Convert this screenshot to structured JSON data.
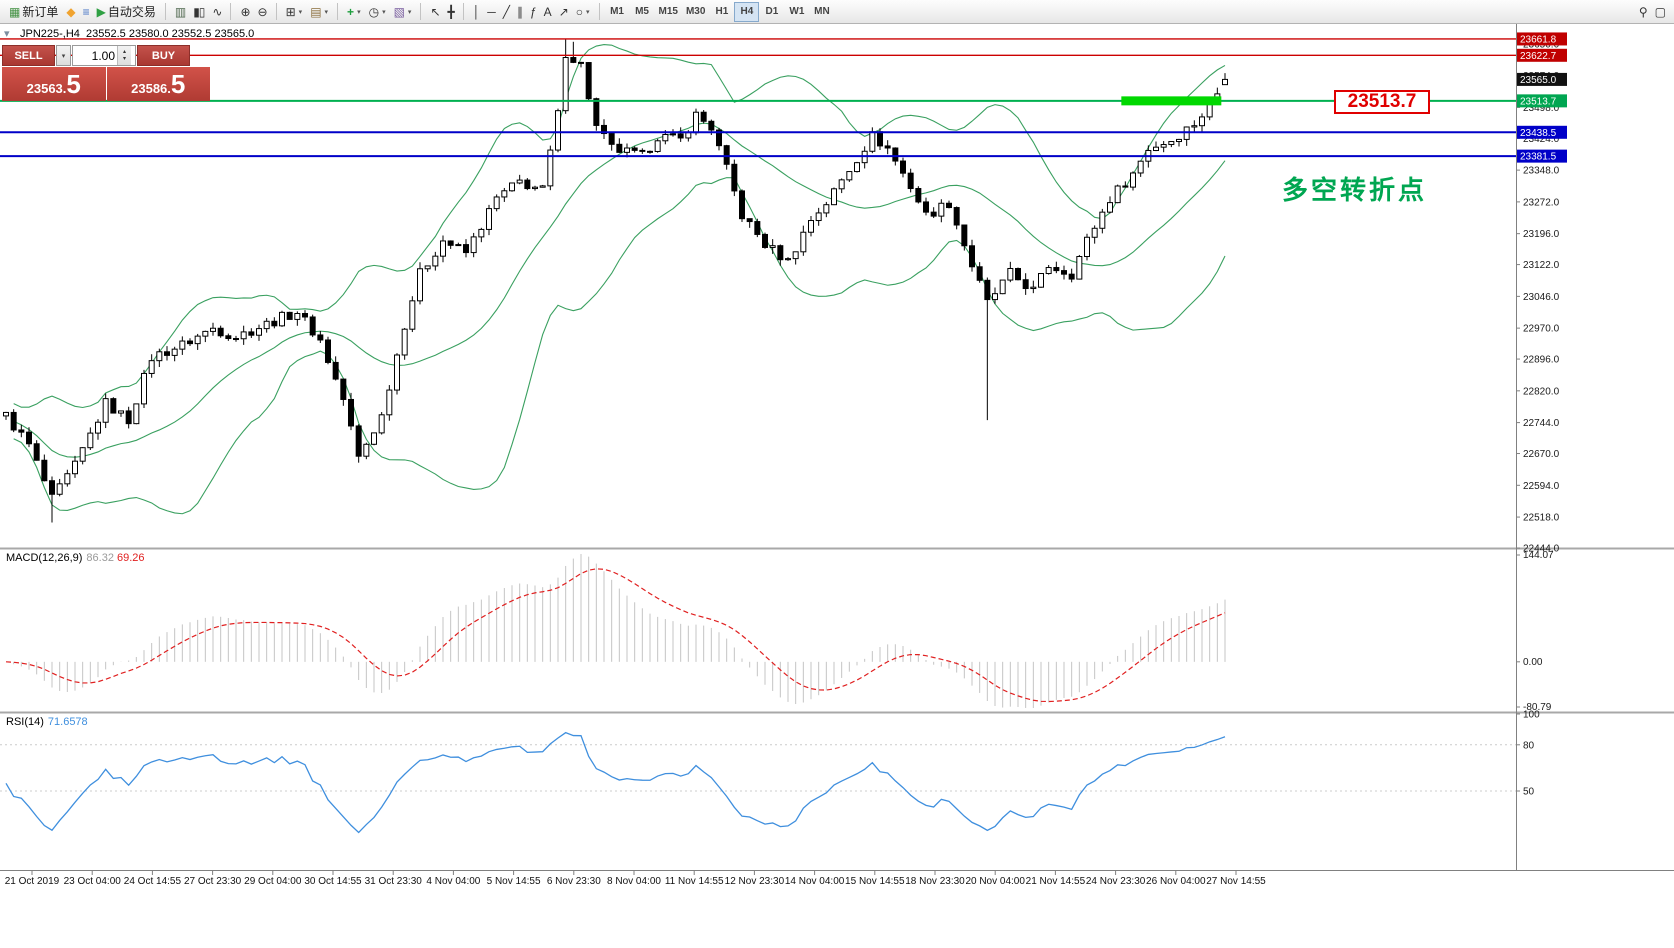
{
  "colors": {
    "background": "#ffffff",
    "candle_up": "#ffffff",
    "candle_down": "#000000",
    "candle_outline": "#000000",
    "bollinger": "#3aa060",
    "macd_histogram": "#c4c4c4",
    "macd_signal": "#e02020",
    "rsi": "#3f8fde",
    "axis_text": "#1a1a1a",
    "separator": "#a8a8a8",
    "scale_line": "#808080"
  },
  "toolbar": {
    "dropdown_icon": "▾",
    "groups": [
      {
        "name": "toolbar-group-trade",
        "items": [
          {
            "name": "new-order-button",
            "glyph": "▦",
            "color": "#3f8f3f",
            "label": "新订单"
          },
          {
            "name": "metaquotes-button",
            "glyph": "◆",
            "color": "#f0a32f"
          },
          {
            "name": "market-watch-button",
            "glyph": "≡",
            "color": "#4472c4"
          },
          {
            "name": "autotrading-button",
            "glyph": "▶",
            "color": "#2fa043",
            "label": "自动交易"
          }
        ]
      },
      {
        "name": "toolbar-group-chart-type",
        "items": [
          {
            "name": "bar-chart-button",
            "glyph": "▥",
            "color": "#50684f"
          },
          {
            "name": "candlestick-chart-button",
            "glyph": "▮▯",
            "color": "#333333"
          },
          {
            "name": "line-chart-button",
            "glyph": "∿",
            "color": "#333333"
          }
        ]
      },
      {
        "name": "toolbar-group-zoom",
        "items": [
          {
            "name": "zoom-in-button",
            "glyph": "⊕",
            "color": "#333333"
          },
          {
            "name": "zoom-out-button",
            "glyph": "⊖",
            "color": "#333333"
          }
        ]
      },
      {
        "name": "toolbar-group-windows",
        "items": [
          {
            "name": "new-chart-button",
            "glyph": "⊞",
            "color": "#333333",
            "dd": true
          },
          {
            "name": "profiles-button",
            "glyph": "▤",
            "color": "#8a6d3b",
            "dd": true
          }
        ]
      },
      {
        "name": "toolbar-group-chart-tools",
        "items": [
          {
            "name": "indicators-button",
            "glyph": "+",
            "color": "#1e9e3e",
            "dd": true
          },
          {
            "name": "periods-button",
            "glyph": "◷",
            "color": "#333333",
            "dd": true
          },
          {
            "name": "templates-button",
            "glyph": "▧",
            "color": "#7a5fa0",
            "dd": true
          }
        ]
      },
      {
        "name": "toolbar-group-cursor",
        "items": [
          {
            "name": "cursor-button",
            "glyph": "↖",
            "color": "#333333"
          },
          {
            "name": "crosshair-button",
            "glyph": "╋",
            "color": "#333333"
          }
        ]
      },
      {
        "name": "toolbar-group-draw",
        "items": [
          {
            "name": "vertical-line-button",
            "glyph": "│",
            "color": "#333333"
          },
          {
            "name": "horizontal-line-button",
            "glyph": "─",
            "color": "#333333"
          },
          {
            "name": "trendline-button",
            "glyph": "╱",
            "color": "#333333"
          },
          {
            "name": "channel-button",
            "glyph": "∥",
            "color": "#333333"
          },
          {
            "name": "fibonacci-button",
            "glyph": "ƒ",
            "color": "#333333"
          },
          {
            "name": "text-button",
            "glyph": "A",
            "color": "#333333"
          },
          {
            "name": "arrow-tool-button",
            "glyph": "↗",
            "color": "#333333"
          },
          {
            "name": "shapes-button",
            "glyph": "○",
            "color": "#333333",
            "dd": true
          }
        ]
      },
      {
        "name": "toolbar-group-timeframes",
        "items": [
          {
            "name": "timeframe-m1-button",
            "text": "M1"
          },
          {
            "name": "timeframe-m5-button",
            "text": "M5"
          },
          {
            "name": "timeframe-m15-button",
            "text": "M15"
          },
          {
            "name": "timeframe-m30-button",
            "text": "M30"
          },
          {
            "name": "timeframe-h1-button",
            "text": "H1"
          },
          {
            "name": "timeframe-h4-button",
            "text": "H4",
            "active": true
          },
          {
            "name": "timeframe-d1-button",
            "text": "D1"
          },
          {
            "name": "timeframe-w1-button",
            "text": "W1"
          },
          {
            "name": "timeframe-mn-button",
            "text": "MN"
          }
        ]
      },
      {
        "name": "toolbar-group-right",
        "right": true,
        "items": [
          {
            "name": "search-symbol-button",
            "glyph": "⚲",
            "color": "#333333"
          },
          {
            "name": "window-list-button",
            "glyph": "▢",
            "color": "#333333"
          }
        ]
      }
    ]
  },
  "chart": {
    "symbol_ohlc_label": "JPN225-,H4  23552.5 23580.0 23552.5 23565.0",
    "callout_text": "23513.7",
    "annotation_text": "多空转折点"
  },
  "one_click": {
    "sell_label": "SELL",
    "buy_label": "BUY",
    "volume": "1.00",
    "sell_price": "23563.5",
    "buy_price": "23586.5",
    "toggle_icon": "▾",
    "dropdown_icon": "▾",
    "spin_up_icon": "▴",
    "spin_down_icon": "▾"
  },
  "indicators": {
    "macd": {
      "label": "MACD(12,26,9)",
      "value_main": "86.32",
      "value_signal": "69.26",
      "scale_labels": [
        "144.07",
        "0.00",
        "-80.79"
      ]
    },
    "rsi": {
      "label": "RSI(14)",
      "value": "71.6578",
      "scale_labels": [
        "100",
        "80",
        "50"
      ]
    }
  },
  "chart_data": {
    "type": "candlestick",
    "symbol": "JPN225-",
    "timeframe": "H4",
    "current_ohlc": {
      "open": 23552.5,
      "high": 23580.0,
      "low": 23552.5,
      "close": 23565.0
    },
    "candle_count": 160,
    "close_waypoints": [
      [
        0,
        22760
      ],
      [
        3,
        22690
      ],
      [
        6,
        22560
      ],
      [
        9,
        22640
      ],
      [
        13,
        22790
      ],
      [
        16,
        22750
      ],
      [
        19,
        22900
      ],
      [
        23,
        22930
      ],
      [
        27,
        22970
      ],
      [
        30,
        22950
      ],
      [
        34,
        22980
      ],
      [
        38,
        23010
      ],
      [
        41,
        22940
      ],
      [
        44,
        22800
      ],
      [
        46,
        22660
      ],
      [
        49,
        22760
      ],
      [
        52,
        22980
      ],
      [
        54,
        23100
      ],
      [
        57,
        23180
      ],
      [
        60,
        23150
      ],
      [
        64,
        23280
      ],
      [
        67,
        23320
      ],
      [
        70,
        23300
      ],
      [
        72,
        23480
      ],
      [
        73,
        23630
      ],
      [
        75,
        23600
      ],
      [
        77,
        23450
      ],
      [
        79,
        23400
      ],
      [
        83,
        23380
      ],
      [
        85,
        23430
      ],
      [
        88,
        23420
      ],
      [
        90,
        23480
      ],
      [
        92,
        23450
      ],
      [
        94,
        23350
      ],
      [
        96,
        23240
      ],
      [
        99,
        23170
      ],
      [
        102,
        23130
      ],
      [
        105,
        23230
      ],
      [
        107,
        23270
      ],
      [
        110,
        23350
      ],
      [
        113,
        23430
      ],
      [
        115,
        23400
      ],
      [
        118,
        23310
      ],
      [
        120,
        23240
      ],
      [
        123,
        23270
      ],
      [
        126,
        23120
      ],
      [
        128,
        23030
      ],
      [
        131,
        23100
      ],
      [
        134,
        23060
      ],
      [
        136,
        23120
      ],
      [
        139,
        23100
      ],
      [
        141,
        23180
      ],
      [
        144,
        23280
      ],
      [
        147,
        23340
      ],
      [
        149,
        23400
      ],
      [
        152,
        23420
      ],
      [
        155,
        23460
      ],
      [
        157,
        23500
      ],
      [
        159,
        23565
      ]
    ],
    "wick_overrides": [
      {
        "i": 6,
        "low": 22505
      },
      {
        "i": 73,
        "high": 23661
      },
      {
        "i": 74,
        "high": 23655
      },
      {
        "i": 128,
        "low": 22750
      }
    ],
    "last_candle": {
      "o": 23552.5,
      "h": 23580.0,
      "l": 23552.5,
      "c": 23565.0
    },
    "indicators": {
      "bollinger": {
        "period": 20,
        "deviation": 2
      },
      "macd": {
        "fast": 12,
        "slow": 26,
        "signal": 9
      },
      "rsi": {
        "period": 14
      }
    },
    "price_axis": {
      "min": 22444.0,
      "max": 23688.0,
      "plain_labels": [
        "23650.0",
        "23574.0",
        "23498.0",
        "23424.0",
        "23348.0",
        "23272.0",
        "23196.0",
        "23122.0",
        "23046.0",
        "22970.0",
        "22896.0",
        "22820.0",
        "22744.0",
        "22670.0",
        "22594.0",
        "22518.0",
        "22444.0"
      ]
    },
    "price_badges": [
      {
        "text": "23661.8",
        "price": 23661.8,
        "bg": "#c00000"
      },
      {
        "text": "23622.7",
        "price": 23622.7,
        "bg": "#c00000"
      },
      {
        "text": "23565.0",
        "price": 23565.0,
        "bg": "#111111"
      },
      {
        "text": "23513.7",
        "price": 23513.7,
        "bg": "#00a651"
      },
      {
        "text": "23438.5",
        "price": 23438.5,
        "bg": "#0000c8"
      },
      {
        "text": "23381.5",
        "price": 23381.5,
        "bg": "#0000c8"
      }
    ],
    "hlines": [
      {
        "price": 23661.8,
        "color": "#cc0000",
        "width": 1.4
      },
      {
        "price": 23622.7,
        "color": "#cc0000",
        "width": 1.4
      },
      {
        "price": 23513.7,
        "color": "#00b050",
        "width": 2
      },
      {
        "price": 23438.5,
        "color": "#0000c8",
        "width": 2
      },
      {
        "price": 23381.5,
        "color": "#0000c8",
        "width": 2
      }
    ],
    "highlight_rect": {
      "price": 23513.7,
      "candle_from": 146,
      "candle_to": 158,
      "color": "#00d800",
      "thickness": 9
    },
    "rsi_levels": [
      80,
      50
    ],
    "time_labels": [
      "21 Oct 2019",
      "23 Oct 04:00",
      "24 Oct 14:55",
      "27 Oct 23:30",
      "29 Oct 04:00",
      "30 Oct 14:55",
      "31 Oct 23:30",
      "4 Nov 04:00",
      "5 Nov 14:55",
      "6 Nov 23:30",
      "8 Nov 04:00",
      "11 Nov 14:55",
      "12 Nov 23:30",
      "14 Nov 04:00",
      "15 Nov 14:55",
      "18 Nov 23:30",
      "20 Nov 04:00",
      "21 Nov 14:55",
      "24 Nov 23:30",
      "26 Nov 04:00",
      "27 Nov 14:55"
    ]
  }
}
